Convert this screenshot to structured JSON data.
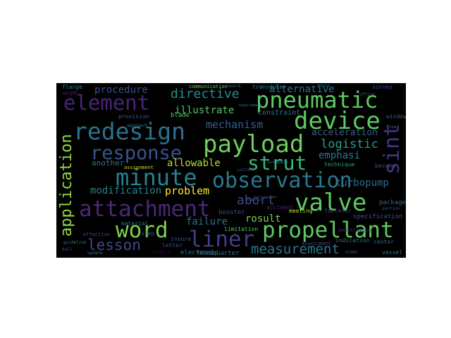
{
  "words": [
    {
      "text": "pneumatic",
      "color": "#5ec962"
    },
    {
      "text": "element",
      "color": "#482475"
    },
    {
      "text": "redesign",
      "color": "#2c728e"
    },
    {
      "text": "device",
      "color": "#5ec962"
    },
    {
      "text": "payload",
      "color": "#6ece58"
    },
    {
      "text": "response",
      "color": "#3b528b"
    },
    {
      "text": "minute",
      "color": "#26828e"
    },
    {
      "text": "observation",
      "color": "#2a788e"
    },
    {
      "text": "strut",
      "color": "#35b779"
    },
    {
      "text": "valve",
      "color": "#5ec962"
    },
    {
      "text": "attachment",
      "color": "#482878"
    },
    {
      "text": "word",
      "color": "#7ad151"
    },
    {
      "text": "liner",
      "color": "#433e85"
    },
    {
      "text": "propellant",
      "color": "#5ec962"
    },
    {
      "text": "application",
      "color": "#90d743"
    },
    {
      "text": "sint",
      "color": "#46327e"
    },
    {
      "text": "lesson",
      "color": "#3e4989"
    },
    {
      "text": "measurement",
      "color": "#2a788e"
    },
    {
      "text": "directive",
      "color": "#21918c"
    },
    {
      "text": "procedure",
      "color": "#3b528b"
    },
    {
      "text": "alternative",
      "color": "#2c728e"
    },
    {
      "text": "illustrate",
      "color": "#52c569"
    },
    {
      "text": "mechanism",
      "color": "#355f8d"
    },
    {
      "text": "logistic",
      "color": "#1fa187"
    },
    {
      "text": "emphasi",
      "color": "#2a788e"
    },
    {
      "text": "acceleration",
      "color": "#355f8d"
    },
    {
      "text": "abort",
      "color": "#3e4989"
    },
    {
      "text": "allowable",
      "color": "#b5de2b"
    },
    {
      "text": "problem",
      "color": "#fde725"
    },
    {
      "text": "modification",
      "color": "#26828e"
    },
    {
      "text": "turbopump",
      "color": "#31688e"
    },
    {
      "text": "failure",
      "color": "#2c728e"
    },
    {
      "text": "rosult",
      "color": "#7ad151"
    },
    {
      "text": "another",
      "color": "#2a788e"
    },
    {
      "text": "constraint",
      "color": "#2a788e"
    },
    {
      "text": "booster",
      "color": "#3e4989"
    },
    {
      "text": "blade",
      "color": "#5ec962"
    },
    {
      "text": "electronic",
      "color": "#26828e"
    },
    {
      "text": "assignment",
      "color": "#c2df23"
    },
    {
      "text": "specification",
      "color": "#3b528b"
    },
    {
      "text": "package",
      "color": "#31688e"
    },
    {
      "text": "fastener",
      "color": "#433e85"
    },
    {
      "text": "meeting",
      "color": "#b5de2b"
    },
    {
      "text": "material",
      "color": "#2a788e"
    },
    {
      "text": "limitation",
      "color": "#5ec962"
    },
    {
      "text": "insure",
      "color": "#355f8d"
    },
    {
      "text": "letter",
      "color": "#3e4989"
    },
    {
      "text": "headquarter",
      "color": "#2c728e"
    },
    {
      "text": "vessel",
      "color": "#2a788e"
    },
    {
      "text": "survey",
      "color": "#3e4989"
    },
    {
      "text": "provision",
      "color": "#38588c"
    },
    {
      "text": "communication",
      "color": "#6ece58"
    },
    {
      "text": "transducer",
      "color": "#26828e"
    },
    {
      "text": "window",
      "color": "#355f8d"
    },
    {
      "text": "accident",
      "color": "#482475"
    },
    {
      "text": "technique",
      "color": "#20a386"
    },
    {
      "text": "become",
      "color": "#3b528b"
    },
    {
      "text": "indication",
      "color": "#2c728e"
    },
    {
      "text": "assessment",
      "color": "#3e4989"
    },
    {
      "text": "penetration",
      "color": "#482878"
    },
    {
      "text": "centor",
      "color": "#2c728e"
    },
    {
      "text": "step",
      "color": "#3b528b"
    },
    {
      "text": "product",
      "color": "#440154"
    },
    {
      "text": "flange",
      "color": "#2a788e"
    },
    {
      "text": "portion",
      "color": "#3b528b"
    },
    {
      "text": "incorporate",
      "color": "#46327e"
    },
    {
      "text": "update",
      "color": "#2c728e"
    },
    {
      "text": "ball",
      "color": "#3e4989"
    },
    {
      "text": "rework",
      "color": "#355f8d"
    },
    {
      "text": "effective",
      "color": "#3b528b"
    },
    {
      "text": "requirement",
      "color": "#2a788e"
    },
    {
      "text": "approach",
      "color": "#26828e"
    },
    {
      "text": "install",
      "color": "#3e4989"
    },
    {
      "text": "evaluate",
      "color": "#2c728e"
    },
    {
      "text": "weight",
      "color": "#482878"
    },
    {
      "text": "office",
      "color": "#355f8d"
    },
    {
      "text": "order",
      "color": "#31688e"
    },
    {
      "text": "guideline",
      "color": "#2c728e"
    },
    {
      "text": "support",
      "color": "#3b528b"
    },
    {
      "text": "flow",
      "color": "#2a788e"
    },
    {
      "text": "level",
      "color": "#355f8d"
    },
    {
      "text": "engine",
      "color": "#26828e"
    }
  ]
}
